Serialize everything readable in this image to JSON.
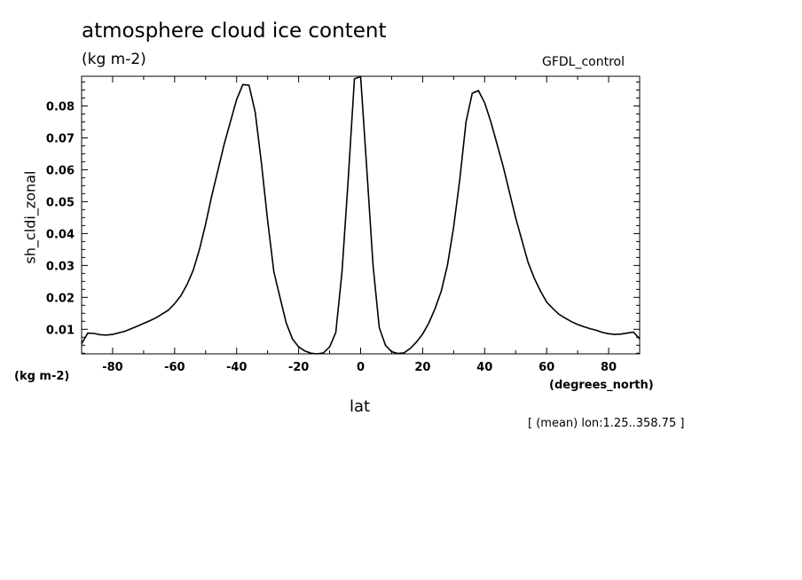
{
  "chart": {
    "title": "atmosphere cloud ice content",
    "units": "(kg m-2)",
    "dataset": "GFDL_control",
    "ylabel": "sh_cldi_zonal",
    "yunit": "(kg m-2)",
    "xlabel": "lat",
    "xunit": "(degrees_north)",
    "footnote": "[ (mean) lon:1.25..358.75 ]"
  },
  "chart_data": {
    "type": "line",
    "title": "atmosphere cloud ice content",
    "xlabel": "lat",
    "ylabel": "sh_cldi_zonal",
    "xlim": [
      -90,
      90
    ],
    "ylim": [
      0.0023,
      0.0893
    ],
    "x_ticks": [
      -80,
      -60,
      -40,
      -20,
      0,
      20,
      40,
      60,
      80
    ],
    "x_tick_labels": [
      "-80",
      "-60",
      "-40",
      "-20",
      "0",
      "20",
      "40",
      "60",
      "80"
    ],
    "y_ticks": [
      0.01,
      0.02,
      0.03,
      0.04,
      0.05,
      0.06,
      0.07,
      0.08
    ],
    "y_tick_labels": [
      "0.01",
      "0.02",
      "0.03",
      "0.04",
      "0.05",
      "0.06",
      "0.07",
      "0.08"
    ],
    "grid": false,
    "series": [
      {
        "x": [
          -90,
          -88,
          -86,
          -84,
          -82,
          -80,
          -76,
          -72,
          -68,
          -66,
          -62,
          -60,
          -58,
          -56,
          -54,
          -52,
          -50,
          -48,
          -46,
          -44,
          -42,
          -40,
          -38,
          -36,
          -34,
          -32,
          -30,
          -28,
          -26,
          -24,
          -22,
          -20,
          -18,
          -16,
          -14,
          -12,
          -10,
          -8,
          -6,
          -4,
          -2,
          0,
          2,
          4,
          6,
          8,
          10,
          12,
          14,
          16,
          18,
          20,
          22,
          24,
          26,
          28,
          30,
          32,
          34,
          36,
          38,
          40,
          42,
          44,
          46,
          48,
          50,
          52,
          54,
          56,
          58,
          60,
          62,
          64,
          66,
          68,
          70,
          72,
          74,
          76,
          78,
          80,
          82,
          84,
          86,
          88,
          90
        ],
        "y": [
          0.0055,
          0.0088,
          0.0087,
          0.0083,
          0.0082,
          0.0084,
          0.0094,
          0.011,
          0.0127,
          0.0136,
          0.016,
          0.018,
          0.0205,
          0.024,
          0.0285,
          0.035,
          0.043,
          0.052,
          0.06,
          0.068,
          0.075,
          0.082,
          0.0867,
          0.0865,
          0.078,
          0.062,
          0.044,
          0.028,
          0.02,
          0.012,
          0.007,
          0.0045,
          0.0032,
          0.0025,
          0.0023,
          0.0026,
          0.0045,
          0.009,
          0.028,
          0.057,
          0.0885,
          0.0892,
          0.06,
          0.03,
          0.0105,
          0.005,
          0.003,
          0.0024,
          0.0026,
          0.004,
          0.006,
          0.0085,
          0.012,
          0.0165,
          0.022,
          0.03,
          0.042,
          0.057,
          0.075,
          0.084,
          0.0848,
          0.081,
          0.075,
          0.068,
          0.061,
          0.053,
          0.045,
          0.038,
          0.031,
          0.026,
          0.022,
          0.0185,
          0.0165,
          0.0147,
          0.0135,
          0.0124,
          0.0115,
          0.0108,
          0.0102,
          0.0097,
          0.009,
          0.0086,
          0.0084,
          0.0085,
          0.0088,
          0.0091,
          0.007
        ]
      }
    ]
  }
}
